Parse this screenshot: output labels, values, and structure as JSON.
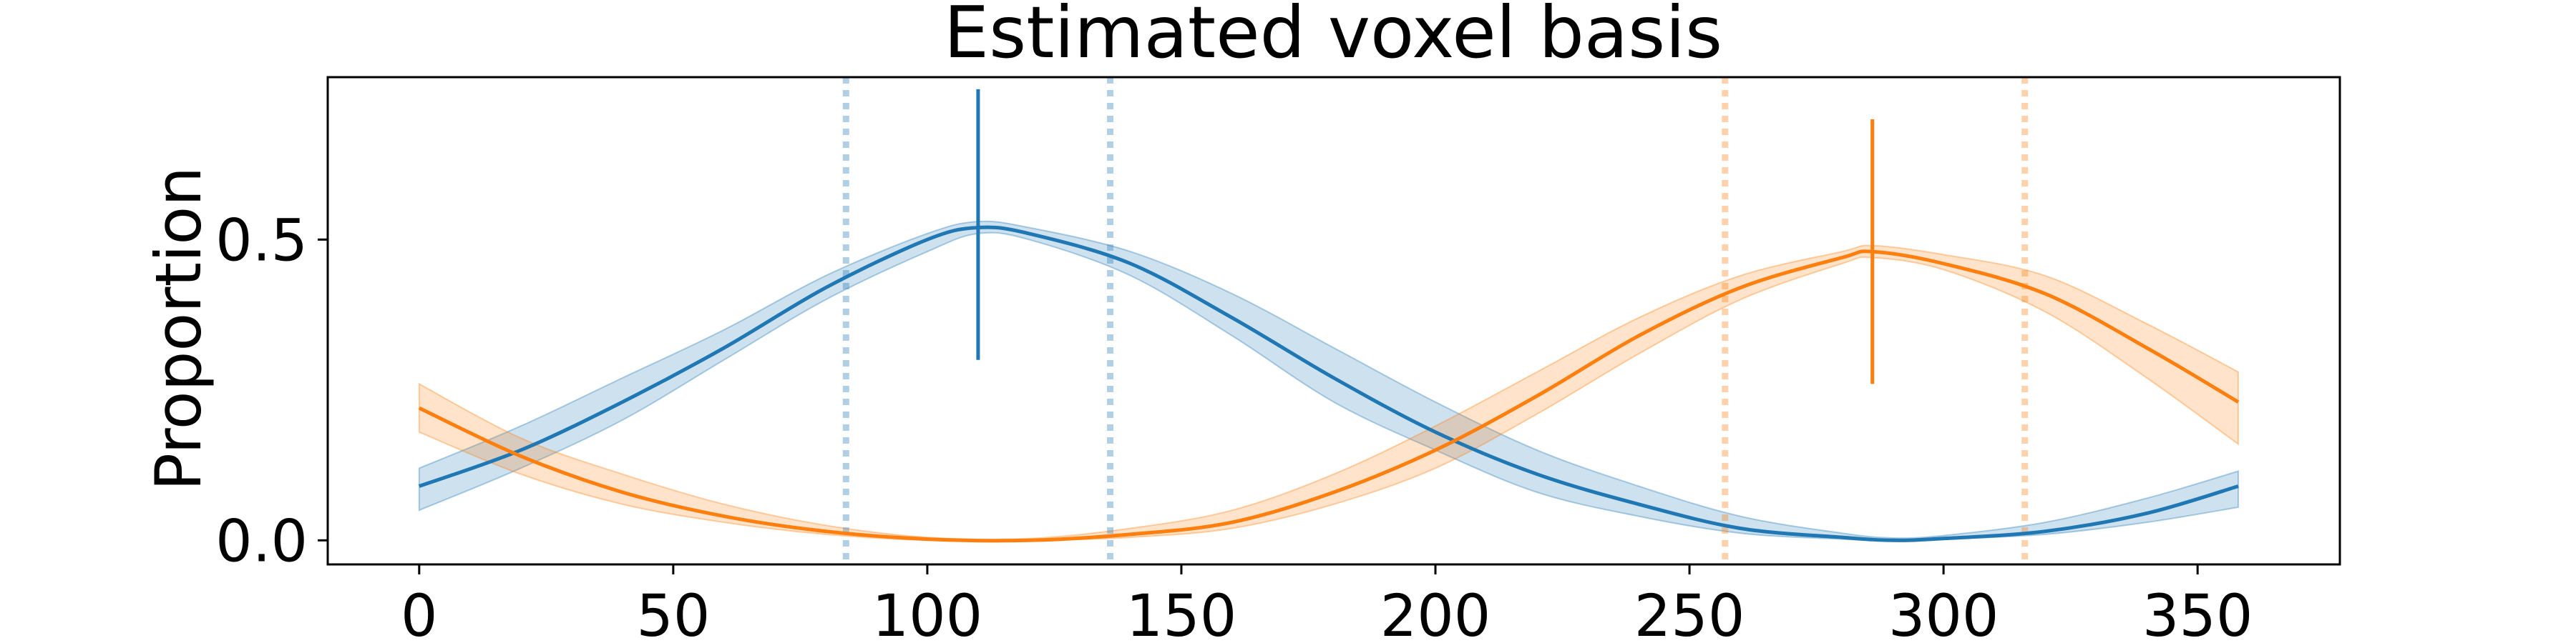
{
  "chart_data": {
    "type": "line",
    "title": "Estimated voxel basis",
    "xlabel": "",
    "ylabel": "Proportion",
    "xlim": [
      -18,
      378
    ],
    "ylim": [
      -0.04,
      0.77
    ],
    "xticks": [
      0,
      50,
      100,
      150,
      200,
      250,
      300,
      350
    ],
    "yticks": [
      0.0,
      0.5
    ],
    "ytick_labels": [
      "0.0",
      "0.5"
    ],
    "grid": false,
    "series": [
      {
        "color": "#1f77b4",
        "band_color": "#1f77b4",
        "x": [
          0,
          20,
          40,
          60,
          80,
          100,
          110,
          120,
          140,
          160,
          180,
          200,
          220,
          240,
          260,
          280,
          290,
          300,
          320,
          340,
          358
        ],
        "y": [
          0.09,
          0.15,
          0.23,
          0.32,
          0.42,
          0.5,
          0.52,
          0.51,
          0.46,
          0.37,
          0.27,
          0.18,
          0.11,
          0.06,
          0.02,
          0.005,
          0.0,
          0.003,
          0.015,
          0.045,
          0.09
        ],
        "lower": [
          0.05,
          0.12,
          0.2,
          0.3,
          0.4,
          0.48,
          0.51,
          0.5,
          0.44,
          0.34,
          0.23,
          0.15,
          0.08,
          0.04,
          0.012,
          0.002,
          0.0,
          0.002,
          0.01,
          0.03,
          0.055
        ],
        "upper": [
          0.12,
          0.19,
          0.27,
          0.35,
          0.44,
          0.51,
          0.53,
          0.52,
          0.48,
          0.41,
          0.32,
          0.23,
          0.15,
          0.09,
          0.04,
          0.012,
          0.004,
          0.008,
          0.03,
          0.07,
          0.115
        ],
        "peak": {
          "x": 110,
          "ymin": 0.3,
          "ymax": 0.75
        },
        "dotted_x": [
          84,
          136
        ]
      },
      {
        "color": "#ff7f0e",
        "band_color": "#ff7f0e",
        "x": [
          0,
          20,
          40,
          60,
          80,
          100,
          120,
          140,
          160,
          180,
          200,
          220,
          240,
          260,
          280,
          286,
          300,
          320,
          340,
          358
        ],
        "y": [
          0.22,
          0.14,
          0.08,
          0.04,
          0.015,
          0.002,
          0.0,
          0.01,
          0.03,
          0.08,
          0.15,
          0.24,
          0.34,
          0.42,
          0.47,
          0.48,
          0.46,
          0.41,
          0.32,
          0.23
        ],
        "lower": [
          0.18,
          0.11,
          0.06,
          0.03,
          0.01,
          0.0,
          0.0,
          0.005,
          0.02,
          0.06,
          0.12,
          0.21,
          0.31,
          0.4,
          0.46,
          0.47,
          0.45,
          0.38,
          0.27,
          0.16
        ],
        "upper": [
          0.26,
          0.17,
          0.11,
          0.06,
          0.025,
          0.005,
          0.003,
          0.02,
          0.05,
          0.11,
          0.19,
          0.28,
          0.37,
          0.44,
          0.48,
          0.49,
          0.475,
          0.44,
          0.36,
          0.28
        ],
        "peak": {
          "x": 286,
          "ymin": 0.26,
          "ymax": 0.7
        },
        "dotted_x": [
          257,
          316
        ]
      }
    ]
  }
}
